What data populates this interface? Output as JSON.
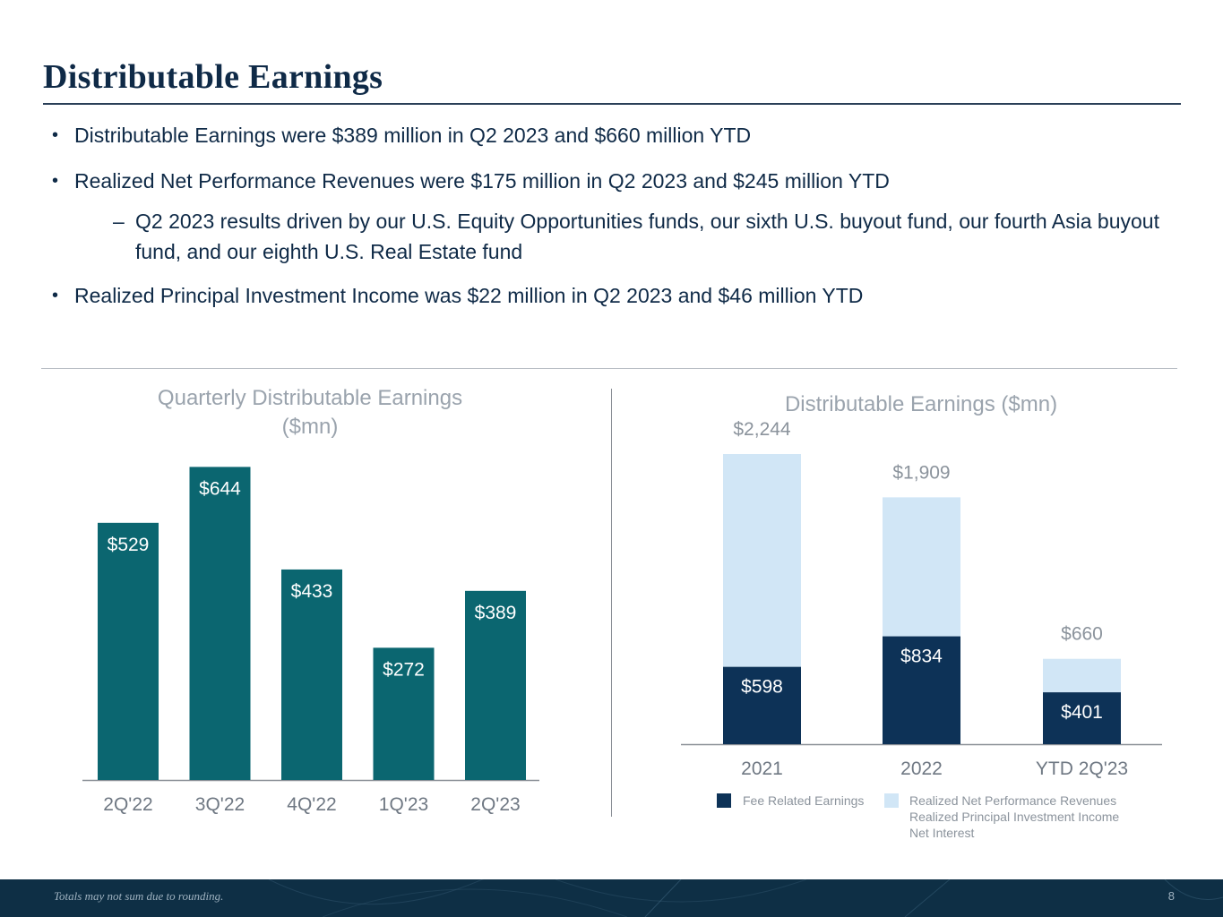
{
  "header": {
    "title": "Distributable Earnings"
  },
  "bullets": [
    {
      "text": "Distributable Earnings were $389 million in Q2 2023 and $660 million YTD"
    },
    {
      "text": "Realized Net Performance Revenues were $175 million in Q2 2023 and $245 million YTD",
      "sub": "Q2 2023 results driven by our U.S. Equity Opportunities funds, our sixth U.S. buyout fund, our fourth Asia buyout fund, and our eighth U.S. Real Estate fund"
    },
    {
      "text": "Realized Principal Investment Income was $22 million in Q2 2023 and $46 million YTD"
    }
  ],
  "bullet_glyph": "•",
  "dash_glyph": "–",
  "colors": {
    "teal": "#0b6670",
    "navy": "#0d3257",
    "light_blue": "#d1e6f6",
    "muted_text": "#9aa3ad"
  },
  "chart_data": [
    {
      "type": "bar",
      "title_line1": "Quarterly Distributable Earnings",
      "title_line2": "($mn)",
      "categories": [
        "2Q'22",
        "3Q'22",
        "4Q'22",
        "1Q'23",
        "2Q'23"
      ],
      "values": [
        529,
        644,
        433,
        272,
        389
      ],
      "labels": [
        "$529",
        "$644",
        "$433",
        "$272",
        "$389"
      ],
      "ylim": [
        0,
        700
      ]
    },
    {
      "type": "stacked-bar",
      "title": "Distributable Earnings ($mn)",
      "categories": [
        "2021",
        "2022",
        "YTD 2Q'23"
      ],
      "series": [
        {
          "name": "Fee Related Earnings",
          "values": [
            598,
            834,
            401
          ],
          "labels": [
            "$598",
            "$834",
            "$401"
          ]
        },
        {
          "name": "Realized Net Performance Revenues Realized Principal Investment Income Net Interest",
          "values": [
            1646,
            1075,
            259
          ]
        }
      ],
      "totals": [
        2244,
        1909,
        660
      ],
      "total_labels": [
        "$2,244",
        "$1,909",
        "$660"
      ],
      "legend": {
        "fre": "Fee Related Earnings",
        "other_line1": "Realized Net Performance Revenues",
        "other_line2": "Realized Principal Investment Income",
        "other_line3": "Net Interest"
      },
      "ylim": [
        0,
        2400
      ]
    }
  ],
  "footer": {
    "note": "Totals may not sum due to rounding.",
    "page": "8"
  }
}
